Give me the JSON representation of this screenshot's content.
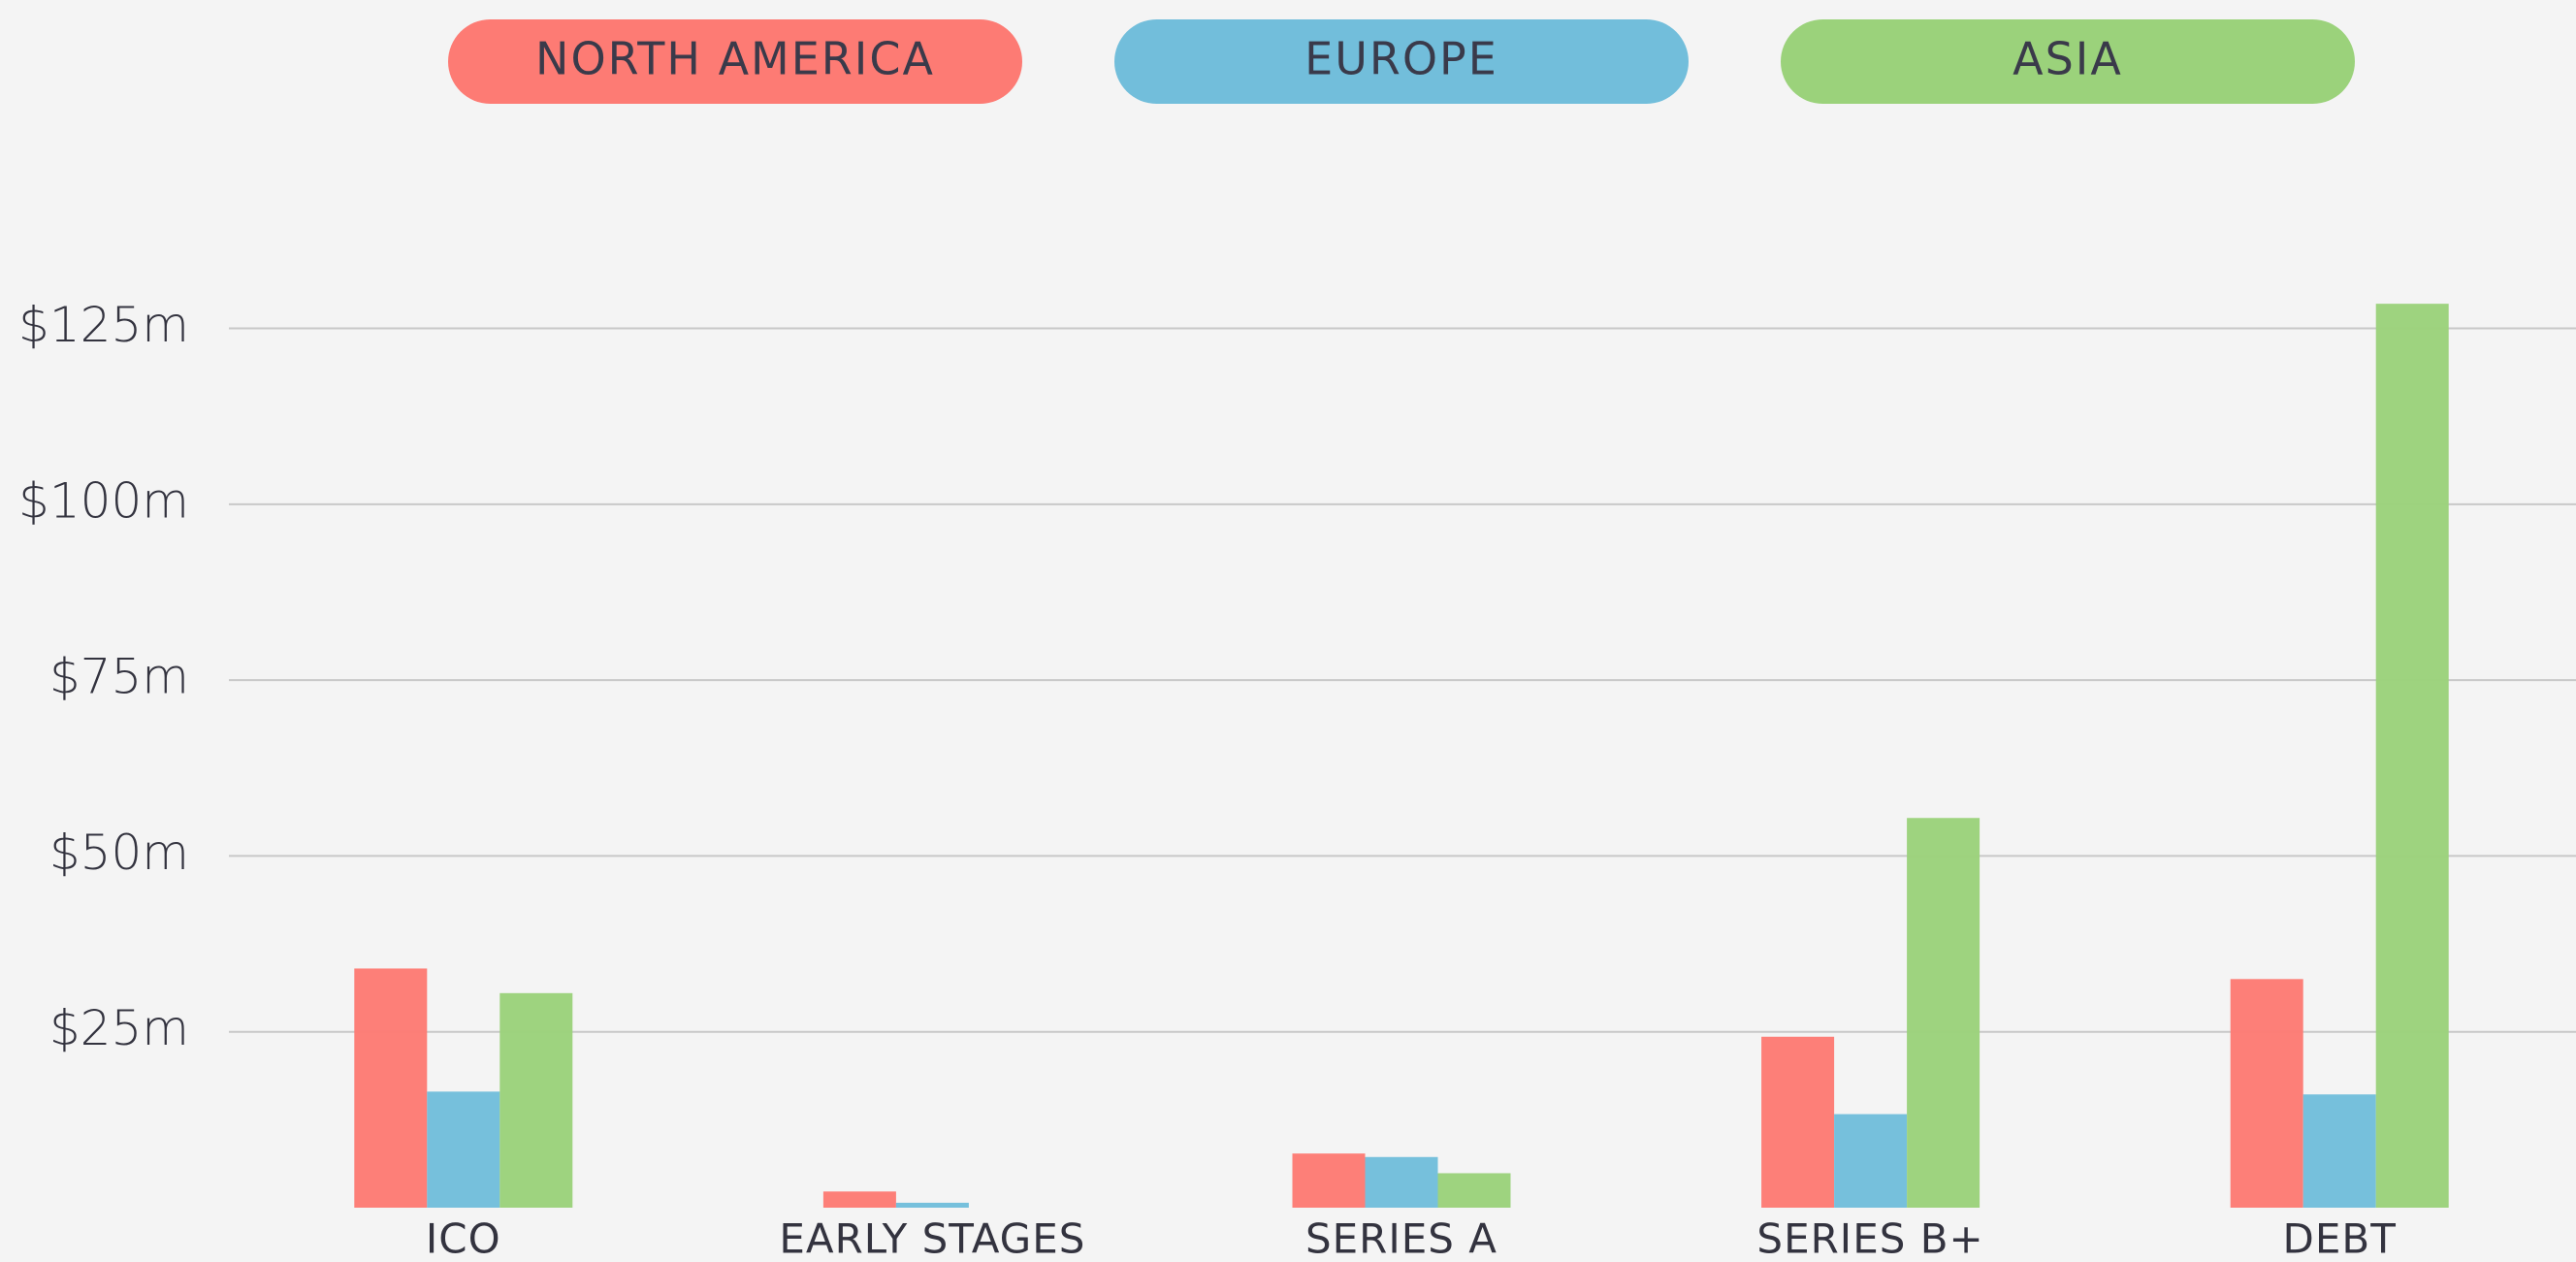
{
  "chart_data": {
    "type": "bar",
    "categories": [
      "ICO",
      "EARLY STAGES",
      "SERIES A",
      "SERIES B+",
      "DEBT"
    ],
    "series": [
      {
        "name": "NORTH AMERICA",
        "color": "#fd7b74",
        "values": [
          34,
          2.3,
          7.7,
          24.3,
          32.5
        ]
      },
      {
        "name": "EUROPE",
        "color": "#72bedb",
        "values": [
          16.5,
          0.7,
          7.2,
          13.3,
          16.1
        ]
      },
      {
        "name": "ASIA",
        "color": "#9bd27b",
        "values": [
          30.5,
          0,
          4.9,
          55.4,
          128.5
        ]
      }
    ],
    "ylim": [
      0,
      139
    ],
    "yticks": [
      {
        "value": 25,
        "label": "$25m"
      },
      {
        "value": 50,
        "label": "$50m"
      },
      {
        "value": 75,
        "label": "$75m"
      },
      {
        "value": 100,
        "label": "$100m"
      },
      {
        "value": 125,
        "label": "$125m"
      }
    ],
    "grid": true,
    "legend": "top"
  }
}
